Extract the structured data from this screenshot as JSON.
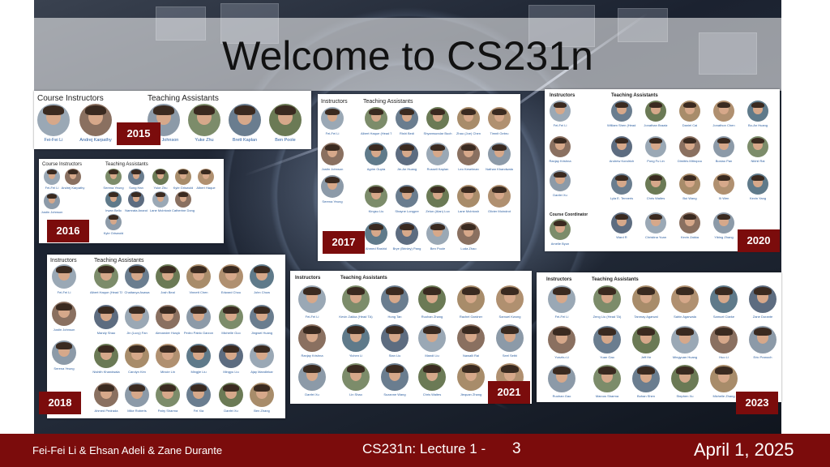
{
  "slide": {
    "title": "Welcome to CS231n"
  },
  "footer": {
    "authors": "Fei-Fei Li & Ehsan Adeli & Zane Durante",
    "course": "CS231n: Lecture 1 -",
    "page": "3",
    "date": "April 1, 2025"
  },
  "panels": {
    "p2015": {
      "year": "2015",
      "instructors_label": "Course Instructors",
      "tas_label": "Teaching Assistants",
      "names": [
        "Fei-Fei Li",
        "Andrej Karpathy",
        "Justin Johnson",
        "Yuke Zhu",
        "Brett Kaplan",
        "Ben Poole"
      ]
    },
    "p2016": {
      "year": "2016",
      "instructors_label": "Course Instructors",
      "tas_label": "Teaching Assistants",
      "names": [
        "Fei-Fei Li",
        "Andrej Karpathy",
        "Justin Johnson",
        "Serena Yeung",
        "Song Han",
        "Yuke Zhu",
        "Kyle Griswold",
        "Albert Haque",
        "Irwan Bello",
        "Namrata Anand",
        "Lane McIntosh",
        "Catherine Dong",
        "Kyle Griswold"
      ]
    },
    "p2017": {
      "year": "2017",
      "instructors_label": "Instructors",
      "tas_label": "Teaching Assistants",
      "names": [
        "Fei-Fei Li",
        "Justin Johnson",
        "Serena Yeung",
        "Albert Haque (Head TA)",
        "Rishi Bedi",
        "Shyamsundar Buch",
        "Zhao (Joe) Chen",
        "Timnit Gebru",
        "Agrim Gupta",
        "Jie-An Huang",
        "Russell Kaplan",
        "Leo Keselman",
        "Nathan Khandwala",
        "Kingsu Liu",
        "Shayne Longpre",
        "Zelun (Alan) Luo",
        "Lane McIntosh",
        "Olivier Moindrot",
        "Ahmed Rashid",
        "Brye (Brinley) Pang",
        "Ben Poole",
        "Luda Zhao"
      ]
    },
    "p2020": {
      "year": "2020",
      "instructors_label": "Instructors",
      "tas_label": "Teaching Assistants",
      "coordinator_label": "Course Coordinator",
      "names": [
        "Fei-Fei Li",
        "Ranjay Krishna",
        "Danfei Xu",
        "Amelie Byun",
        "William Shen (Head TA)",
        "Jonathan Braatz",
        "Daniel Cai",
        "Jonathon Chen",
        "Bo-An Huang",
        "Andrew Kondrich",
        "Pong Fu Lin",
        "Dimitris Mitropou",
        "Boxiao Pan",
        "Nikhil Rai",
        "Lyla E. Tenneris",
        "Chris Waites",
        "Bui Wang",
        "Xi Wen",
        "Kevin Yang",
        "Ward R",
        "Christina Yuan",
        "Kevin Zakka",
        "Yibing Zhang"
      ]
    },
    "p2018": {
      "year": "2018",
      "instructors_label": "Instructors",
      "tas_label": "Teaching Assistants",
      "names": [
        "Fei-Fei Li",
        "Justin Johnson",
        "Serena Yeung",
        "Albert Haque (Head TA)",
        "Chaitanya Asawa",
        "Josh Beal",
        "Vinnett Chen",
        "Edward Chou",
        "John Chow",
        "Mandy Shao",
        "Jin (Lucy) Fan",
        "Alexander Husyk",
        "Pedro Pablo Garzon",
        "Michelle Guo",
        "Jingwei Huang",
        "Nishith Khandwala",
        "Carolyn Kim",
        "Mincie Lin",
        "Mingjie Liu",
        "Mingyu Liu",
        "Ajay Mandlekar",
        "Ahmed Pedrada",
        "Mike Roberts",
        "Patry Sharma",
        "Fei Xia",
        "Danfei Xu",
        "Ben Zhang"
      ]
    },
    "p2021": {
      "year": "2021",
      "instructors_label": "Instructors",
      "tas_label": "Teaching Assistants",
      "names": [
        "Fei-Fei Li",
        "Ranjay Krishna",
        "Danfei Xu",
        "Kevin Zakka (Head TA)",
        "Hong Tan",
        "Ruohan Zhang",
        "Rachel Gardner",
        "Samuel Kwong",
        "Yichen Li",
        "Stan Liu",
        "Mandi Liu",
        "Nawalli Rai",
        "Seel Sethi",
        "Lin Shao",
        "Suzanne Wang",
        "Chris Waites",
        "Jiequan Zhang",
        "Russell Ye"
      ]
    },
    "p2023": {
      "year": "2023",
      "instructors_label": "Instructors",
      "tas_label": "Teaching Assistants",
      "names": [
        "Fei-Fei Li",
        "Yunzhu Li",
        "Ruohan Gao",
        "Zeng Liu (Head TA)",
        "Yuan Gao",
        "Jeff He",
        "Tanmay Agarwal",
        "Sahin Agarwala",
        "Samuel Clarke",
        "Zane Durante",
        "Mingyuan Huang",
        "Huo Li",
        "Eric Pranoch",
        "Marcus Sharma",
        "Bohan Shen",
        "Stephen Xu",
        "Michelle Zhang"
      ]
    }
  }
}
